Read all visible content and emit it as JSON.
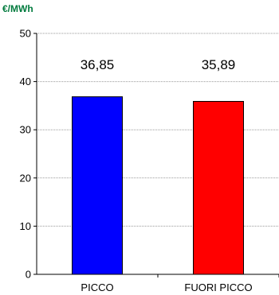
{
  "unit": "€/MWh",
  "chart_data": {
    "type": "bar",
    "categories": [
      "PICCO",
      "FUORI PICCO"
    ],
    "values": [
      36.85,
      35.89
    ],
    "value_labels": [
      "36,85",
      "35,89"
    ],
    "colors": [
      "#0000ff",
      "#ff0000"
    ],
    "ylim": [
      0,
      50
    ],
    "yticks": [
      "0",
      "10",
      "20",
      "30",
      "40",
      "50"
    ],
    "grid": true,
    "legend": "none"
  }
}
